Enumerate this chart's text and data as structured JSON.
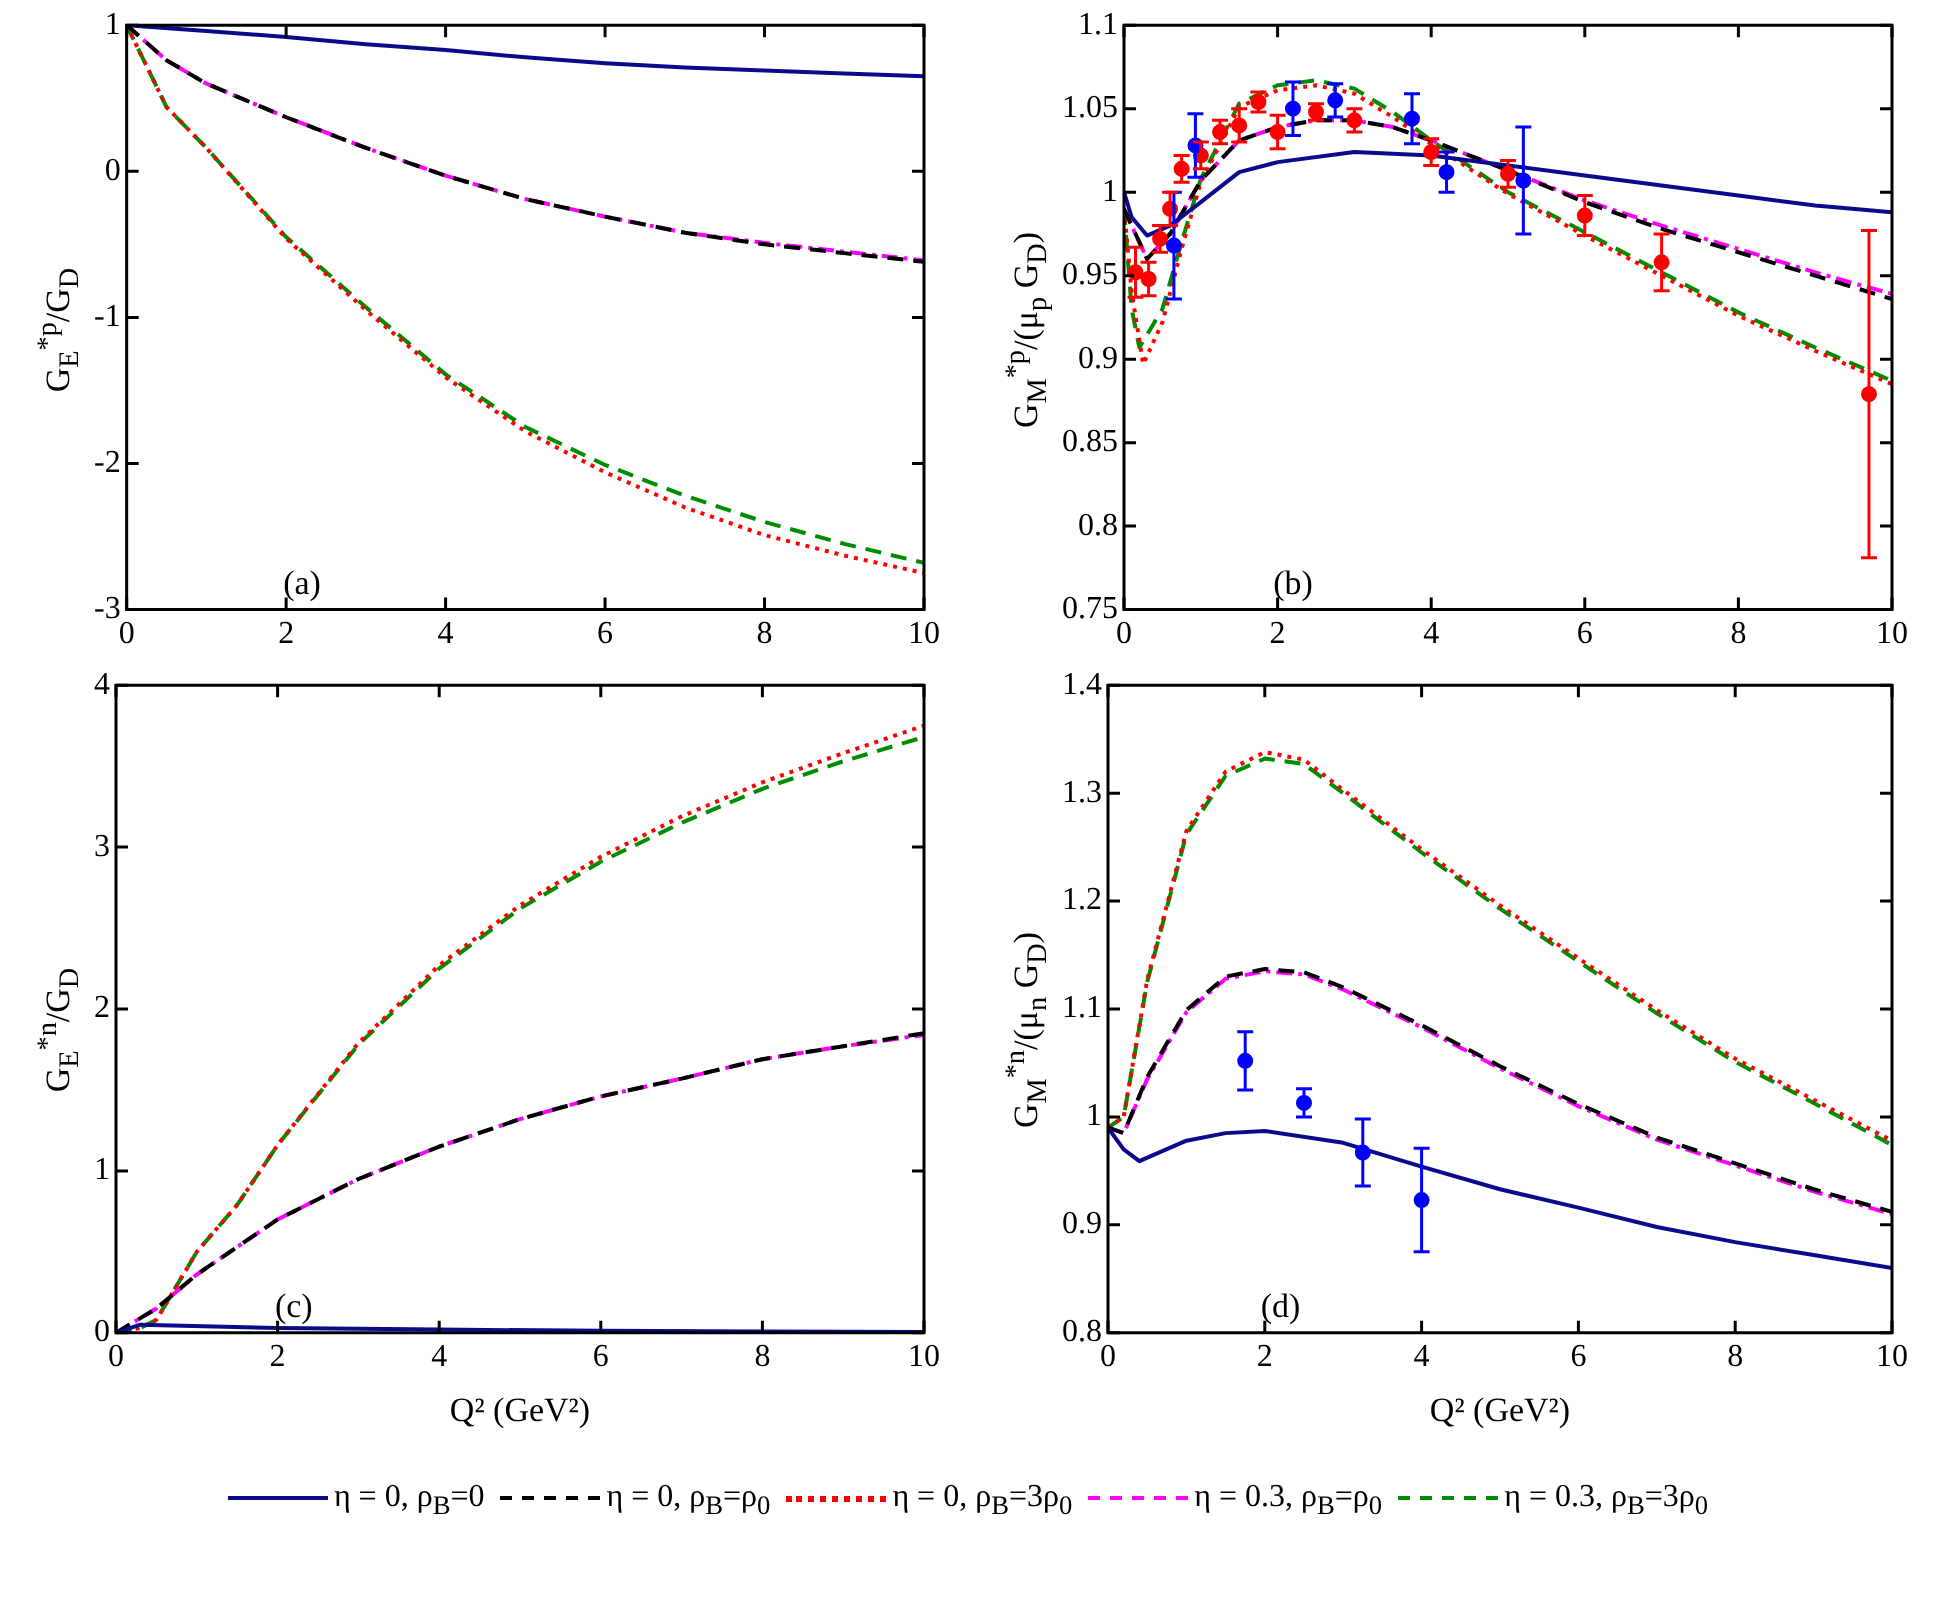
{
  "chart_data": [
    {
      "type": "line",
      "ylabel": "G$_{E}$$^{*p}$/G$_{D}$",
      "xlim": [
        0,
        10
      ],
      "xticks": [
        0,
        2,
        4,
        6,
        8,
        10
      ],
      "ylim": [
        -3,
        1
      ],
      "yticks": [
        -3,
        -2,
        -1,
        0,
        1
      ],
      "legend": "bottom",
      "annotations": [
        "(a)"
      ],
      "series": [
        {
          "name": "η = 0, ρ$_{B}$=0",
          "color": "#0a0a8c",
          "line_style": "solid",
          "x": [
            0,
            1,
            2,
            3,
            4,
            5,
            6,
            7,
            8,
            9,
            10
          ],
          "values": [
            1,
            0.96,
            0.92,
            0.87,
            0.83,
            0.78,
            0.74,
            0.71,
            0.69,
            0.67,
            0.65
          ]
        },
        {
          "name": "η = 0, ρ$_{B}$=ρ$_{0}$",
          "color": "#000000",
          "line_style": "dashed",
          "x": [
            0,
            0.5,
            1,
            2,
            3,
            4,
            5,
            6,
            7,
            8,
            9,
            10
          ],
          "values": [
            1,
            0.76,
            0.6,
            0.37,
            0.16,
            -0.03,
            -0.19,
            -0.31,
            -0.42,
            -0.5,
            -0.56,
            -0.62
          ]
        },
        {
          "name": "η = 0, ρ$_{B}$=3ρ$_{0}$",
          "color": "#ff0000",
          "line_style": "dotted",
          "x": [
            0,
            0.5,
            1,
            2,
            3,
            4,
            5,
            6,
            7,
            8,
            9,
            10
          ],
          "values": [
            1,
            0.44,
            0.16,
            -0.46,
            -0.95,
            -1.41,
            -1.78,
            -2.06,
            -2.3,
            -2.49,
            -2.63,
            -2.75
          ]
        },
        {
          "name": "η = 0.3, ρ$_{B}$=ρ$_{0}$",
          "color": "#ff00ff",
          "line_style": "dashdot",
          "x": [
            0,
            0.5,
            1,
            2,
            3,
            4,
            5,
            6,
            7,
            8,
            9,
            10
          ],
          "values": [
            1,
            0.76,
            0.6,
            0.37,
            0.16,
            -0.03,
            -0.19,
            -0.31,
            -0.42,
            -0.49,
            -0.55,
            -0.61
          ]
        },
        {
          "name": "η = 0.3, ρ$_{B}$=3ρ$_{0}$",
          "color": "#008c00",
          "line_style": "dashed",
          "x": [
            0,
            0.5,
            1,
            2,
            3,
            4,
            5,
            6,
            7,
            8,
            9,
            10
          ],
          "values": [
            1,
            0.44,
            0.16,
            -0.45,
            -0.93,
            -1.39,
            -1.75,
            -2.01,
            -2.22,
            -2.4,
            -2.55,
            -2.68
          ]
        }
      ]
    },
    {
      "type": "line",
      "ylabel": "G$_{M}$$^{*p}$/(μ$_{p}$ G$_{D}$)",
      "xlim": [
        0,
        10
      ],
      "xticks": [
        0,
        2,
        4,
        6,
        8,
        10
      ],
      "ylim": [
        0.75,
        1.1
      ],
      "yticks": [
        0.75,
        0.8,
        0.85,
        0.9,
        0.95,
        1,
        1.05,
        1.1
      ],
      "annotations": [
        "(b)"
      ],
      "series": [
        {
          "color": "#0a0a8c",
          "line_style": "solid",
          "x": [
            0,
            0.1,
            0.3,
            0.6,
            1,
            1.5,
            2,
            3,
            4,
            5,
            6,
            7,
            8,
            9,
            10
          ],
          "values": [
            1,
            0.985,
            0.974,
            0.98,
            0.994,
            1.012,
            1.018,
            1.024,
            1.022,
            1.016,
            1.01,
            1.004,
            0.998,
            0.992,
            0.988
          ]
        },
        {
          "color": "#000000",
          "line_style": "dashed",
          "x": [
            0,
            0.3,
            0.6,
            1,
            1.5,
            2,
            2.5,
            3,
            3.5,
            4,
            5,
            6,
            7,
            8,
            9,
            10
          ],
          "values": [
            0.99,
            0.96,
            0.975,
            1.007,
            1.031,
            1.039,
            1.043,
            1.043,
            1.039,
            1.031,
            1.013,
            0.994,
            0.978,
            0.964,
            0.95,
            0.936
          ]
        },
        {
          "color": "#ff0000",
          "line_style": "dotted",
          "x": [
            0,
            0.1,
            0.25,
            0.5,
            0.75,
            1,
            1.5,
            2,
            2.5,
            3,
            3.5,
            4,
            5,
            6,
            7,
            8,
            9,
            10
          ],
          "values": [
            0.99,
            0.94,
            0.897,
            0.922,
            0.966,
            1.006,
            1.051,
            1.061,
            1.064,
            1.059,
            1.045,
            1.029,
            0.999,
            0.974,
            0.95,
            0.926,
            0.905,
            0.885
          ]
        },
        {
          "color": "#ff00ff",
          "line_style": "dashdot",
          "x": [
            0,
            0.3,
            0.6,
            1,
            1.5,
            2,
            2.5,
            3,
            3.5,
            4,
            5,
            6,
            7,
            8,
            9,
            10
          ],
          "values": [
            0.99,
            0.96,
            0.975,
            1.007,
            1.031,
            1.039,
            1.043,
            1.043,
            1.039,
            1.031,
            1.013,
            0.995,
            0.98,
            0.966,
            0.952,
            0.939
          ]
        },
        {
          "color": "#008c00",
          "line_style": "dashed",
          "x": [
            0,
            0.1,
            0.2,
            0.5,
            0.75,
            1,
            1.5,
            2,
            2.5,
            3,
            3.5,
            4,
            5,
            6,
            7,
            8,
            9,
            10
          ],
          "values": [
            0.99,
            0.93,
            0.907,
            0.93,
            0.97,
            1.008,
            1.053,
            1.064,
            1.067,
            1.062,
            1.048,
            1.031,
            1,
            0.976,
            0.952,
            0.928,
            0.907,
            0.887
          ]
        },
        {
          "type": "scatter",
          "color": "#0000ff",
          "marker": "circle",
          "x": [
            0.65,
            0.93,
            2.2,
            2.75,
            3.75,
            4.2,
            5.2
          ],
          "values": [
            0.968,
            1.028,
            1.05,
            1.055,
            1.044,
            1.012,
            1.007
          ],
          "errors": [
            0.032,
            0.019,
            0.016,
            0.01,
            0.015,
            0.012,
            0.032
          ]
        },
        {
          "type": "scatter",
          "color": "#ff0000",
          "marker": "circle",
          "x": [
            0.15,
            0.32,
            0.47,
            0.6,
            0.75,
            1,
            1.25,
            1.5,
            1.75,
            2,
            2.5,
            3,
            4,
            5,
            6,
            7,
            9.7
          ],
          "values": [
            0.952,
            0.948,
            0.972,
            0.99,
            1.014,
            1.022,
            1.036,
            1.04,
            1.054,
            1.036,
            1.048,
            1.043,
            1.024,
            1.011,
            0.986,
            0.958,
            0.879
          ],
          "errors": [
            0.015,
            0.01,
            0.008,
            0.01,
            0.008,
            0.008,
            0.007,
            0.01,
            0.006,
            0.01,
            0.005,
            0.007,
            0.008,
            0.008,
            0.012,
            0.017,
            0.098
          ]
        }
      ]
    },
    {
      "type": "line",
      "xlabel": "Q² (GeV²)",
      "ylabel": "G$_{E}$$^{*n}$/G$_{D}$",
      "xlim": [
        0,
        10
      ],
      "xticks": [
        0,
        2,
        4,
        6,
        8,
        10
      ],
      "ylim": [
        0,
        4
      ],
      "yticks": [
        0,
        1,
        2,
        3,
        4
      ],
      "annotations": [
        "(c)"
      ],
      "series": [
        {
          "color": "#0a0a8c",
          "line_style": "solid",
          "x": [
            0,
            0.3,
            2,
            4,
            6,
            8,
            10
          ],
          "values": [
            0,
            0.05,
            0.03,
            0.02,
            0.012,
            0.008,
            0.005
          ]
        },
        {
          "color": "#000000",
          "line_style": "dashed",
          "x": [
            0,
            0.5,
            1,
            2,
            3,
            4,
            5,
            6,
            7,
            8,
            9,
            10
          ],
          "values": [
            0,
            0.15,
            0.36,
            0.7,
            0.95,
            1.15,
            1.32,
            1.46,
            1.57,
            1.69,
            1.77,
            1.85
          ]
        },
        {
          "color": "#ff0000",
          "line_style": "dotted",
          "x": [
            0,
            0.3,
            0.5,
            1,
            1.5,
            2,
            3,
            4,
            5,
            6,
            7,
            8,
            9,
            10
          ],
          "values": [
            0,
            0.03,
            0.08,
            0.5,
            0.79,
            1.16,
            1.79,
            2.27,
            2.64,
            2.94,
            3.19,
            3.4,
            3.58,
            3.75
          ]
        },
        {
          "color": "#ff00ff",
          "line_style": "dashdot",
          "x": [
            0,
            0.5,
            1,
            2,
            3,
            4,
            5,
            6,
            7,
            8,
            9,
            10
          ],
          "values": [
            0,
            0.15,
            0.36,
            0.7,
            0.95,
            1.15,
            1.32,
            1.46,
            1.57,
            1.69,
            1.77,
            1.84
          ]
        },
        {
          "color": "#008c00",
          "line_style": "dashed",
          "x": [
            0,
            0.3,
            0.5,
            1,
            1.5,
            2,
            3,
            4,
            5,
            6,
            7,
            8,
            9,
            10
          ],
          "values": [
            0,
            0.03,
            0.08,
            0.5,
            0.79,
            1.16,
            1.78,
            2.25,
            2.62,
            2.91,
            3.15,
            3.36,
            3.53,
            3.68
          ]
        }
      ]
    },
    {
      "type": "line",
      "xlabel": "Q² (GeV²)",
      "ylabel": "G$_{M}$$^{*n}$/(μ$_{n}$ G$_{D}$)",
      "xlim": [
        0,
        10
      ],
      "xticks": [
        0,
        2,
        4,
        6,
        8,
        10
      ],
      "ylim": [
        0.8,
        1.4
      ],
      "yticks": [
        0.8,
        0.9,
        1,
        1.1,
        1.2,
        1.3,
        1.4
      ],
      "annotations": [
        "(d)"
      ],
      "series": [
        {
          "color": "#0a0a8c",
          "line_style": "solid",
          "x": [
            0,
            0.2,
            0.4,
            1,
            1.5,
            2,
            3,
            4,
            5,
            6,
            7,
            8,
            9,
            10
          ],
          "values": [
            0.99,
            0.97,
            0.959,
            0.978,
            0.985,
            0.987,
            0.976,
            0.954,
            0.933,
            0.916,
            0.898,
            0.884,
            0.872,
            0.86
          ]
        },
        {
          "color": "#000000",
          "line_style": "dashed",
          "x": [
            0,
            0.2,
            0.5,
            1,
            1.5,
            2,
            2.5,
            3,
            4,
            5,
            6,
            7,
            8,
            9,
            10
          ],
          "values": [
            0.99,
            0.985,
            1.037,
            1.099,
            1.13,
            1.137,
            1.134,
            1.12,
            1.085,
            1.047,
            1.012,
            0.981,
            0.957,
            0.933,
            0.912
          ]
        },
        {
          "color": "#ff0000",
          "line_style": "dotted",
          "x": [
            0,
            0.2,
            0.5,
            1,
            1.5,
            2,
            2.5,
            3,
            4,
            5,
            6,
            7,
            8,
            9,
            10
          ],
          "values": [
            0.99,
            1,
            1.127,
            1.265,
            1.32,
            1.338,
            1.331,
            1.303,
            1.248,
            1.196,
            1.147,
            1.099,
            1.054,
            1.016,
            0.978
          ]
        },
        {
          "color": "#ff00ff",
          "line_style": "dashdot",
          "x": [
            0,
            0.2,
            0.5,
            1,
            1.5,
            2,
            2.5,
            3,
            4,
            5,
            6,
            7,
            8,
            9,
            10
          ],
          "values": [
            0.99,
            0.985,
            1.035,
            1.097,
            1.128,
            1.135,
            1.132,
            1.118,
            1.083,
            1.045,
            1.01,
            0.979,
            0.955,
            0.931,
            0.91
          ]
        },
        {
          "color": "#008c00",
          "line_style": "dashed",
          "x": [
            0,
            0.2,
            0.5,
            1,
            1.5,
            2,
            2.5,
            3,
            4,
            5,
            6,
            7,
            8,
            9,
            10
          ],
          "values": [
            0.99,
            1,
            1.125,
            1.262,
            1.316,
            1.332,
            1.327,
            1.3,
            1.245,
            1.193,
            1.144,
            1.096,
            1.051,
            1.013,
            0.974
          ]
        },
        {
          "type": "scatter",
          "color": "#0000ff",
          "marker": "circle",
          "x": [
            1.75,
            2.5,
            3.25,
            4
          ],
          "values": [
            1.052,
            1.013,
            0.967,
            0.923
          ],
          "errors": [
            0.027,
            0.013,
            0.031,
            0.048
          ]
        }
      ]
    }
  ]
}
